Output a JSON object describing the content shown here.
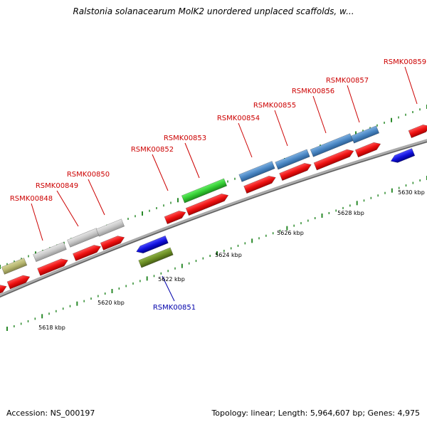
{
  "title": "Ralstonia solanacearum MolK2 unordered unplaced scaffolds, w...",
  "footer": {
    "accession": "Accession: NS_000197",
    "summary": "Topology: linear; Length: 5,964,607 bp; Genes: 4,975"
  },
  "scale_labels": [
    "5618 kbp",
    "5620 kbp",
    "5622 kbp",
    "5624 kbp",
    "5626 kbp",
    "5628 kbp",
    "5630 kbp"
  ],
  "gene_labels": [
    "RSMK00848",
    "RSMK00849",
    "RSMK00850",
    "RSMK00851",
    "RSMK00852",
    "RSMK00853",
    "RSMK00854",
    "RSMK00855",
    "RSMK00856",
    "RSMK00857",
    "RSMK00859"
  ],
  "colors": {
    "label_forward": "#cc0000",
    "label_reverse": "#0000aa",
    "red_gene": "#ee1111",
    "blue_gene": "#1111dd",
    "green_gene": "#33cc33",
    "olive_gene": "#6b8e23",
    "khaki_gene": "#b8b870",
    "grey_gene": "#c8c8c8",
    "steelblue_gene": "#4a87c4",
    "backbone": "#888888",
    "ticks": "#2a8a2a"
  }
}
